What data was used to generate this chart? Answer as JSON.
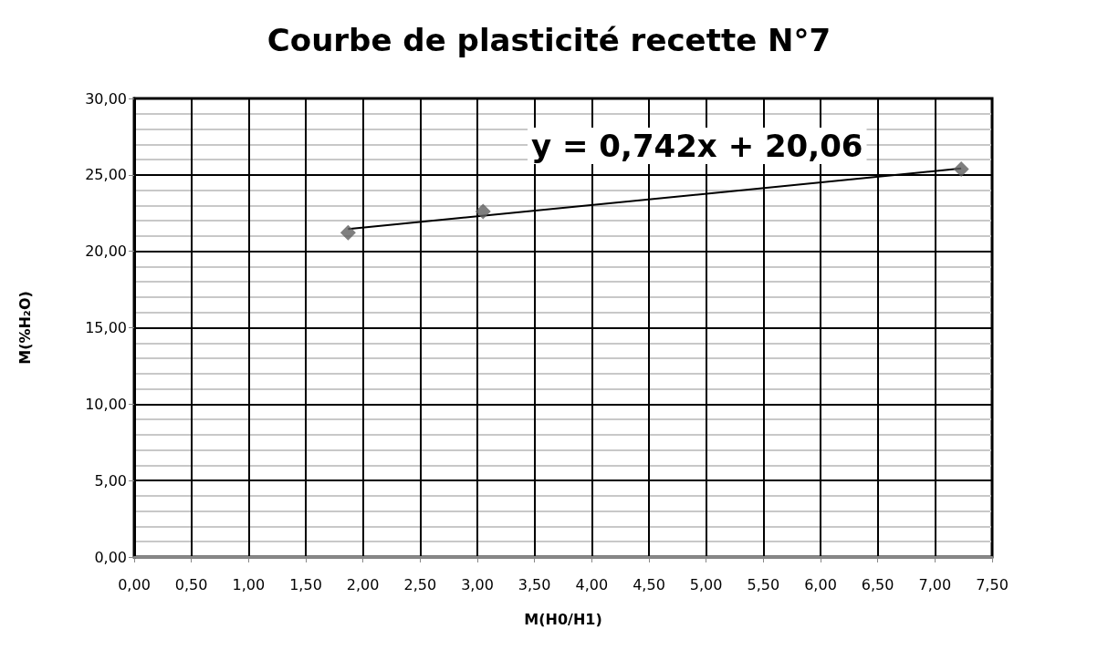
{
  "chart_data": {
    "type": "scatter",
    "title": "Courbe de plasticité recette N°7",
    "xlabel": "M(H0/H1)",
    "ylabel": "M(%H₂O)",
    "annotations": [
      "y = 0,742x + 20,06"
    ],
    "series": [
      {
        "color": "#5f5f5f",
        "marker": "diamond",
        "x": [
          1.87,
          3.05,
          7.23
        ],
        "values": [
          21.22,
          22.6,
          25.38
        ]
      },
      {
        "type": "line",
        "color": "#000000",
        "marker": "none",
        "x": [
          1.87,
          7.23
        ],
        "values": [
          21.45,
          25.42
        ]
      }
    ],
    "xlim": [
      0,
      7.5
    ],
    "xticks": [
      {
        "value": 0,
        "label": "0,00"
      },
      {
        "value": 0.5,
        "label": "0,50"
      },
      {
        "value": 1,
        "label": "1,00"
      },
      {
        "value": 1.5,
        "label": "1,50"
      },
      {
        "value": 2,
        "label": "2,00"
      },
      {
        "value": 2.5,
        "label": "2,50"
      },
      {
        "value": 3,
        "label": "3,00"
      },
      {
        "value": 3.5,
        "label": "3,50"
      },
      {
        "value": 4,
        "label": "4,00"
      },
      {
        "value": 4.5,
        "label": "4,50"
      },
      {
        "value": 5,
        "label": "5,00"
      },
      {
        "value": 5.5,
        "label": "5,50"
      },
      {
        "value": 6,
        "label": "6,00"
      },
      {
        "value": 6.5,
        "label": "6,50"
      },
      {
        "value": 7,
        "label": "7,00"
      },
      {
        "value": 7.5,
        "label": "7,50"
      }
    ],
    "ylim": [
      0,
      30
    ],
    "yticks": [
      {
        "value": 0,
        "label": "0,00"
      },
      {
        "value": 5,
        "label": "5,00"
      },
      {
        "value": 10,
        "label": "10,00"
      },
      {
        "value": 15,
        "label": "15,00"
      },
      {
        "value": 20,
        "label": "20,00"
      },
      {
        "value": 25,
        "label": "25,00"
      },
      {
        "value": 30,
        "label": "30,00"
      }
    ],
    "grid": true
  }
}
